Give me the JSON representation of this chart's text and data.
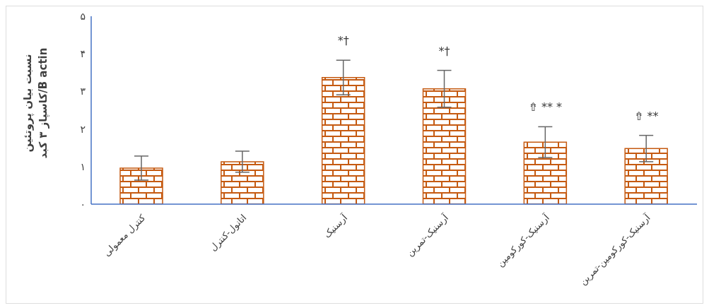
{
  "chart_data": {
    "type": "bar",
    "ylabel": "نسبت بیان پروتئین\nکاسپاز ۳ کبد/B actin",
    "categories": [
      "کنترل معمولی",
      "اتانول-کنترل",
      "آرسنیک",
      "آرسنیک-تمرین",
      "آرسنیک-کورکومین",
      "آرسنیک-کورکومین-تمرین"
    ],
    "values": [
      0.96,
      1.13,
      3.37,
      3.07,
      1.65,
      1.48
    ],
    "errors": [
      0.32,
      0.28,
      0.46,
      0.49,
      0.41,
      0.35
    ],
    "color": "#c55a11",
    "ylim": [
      0,
      5
    ],
    "yticks": [
      {
        "value": 0,
        "label": "۰"
      },
      {
        "value": 1,
        "label": "۱"
      },
      {
        "value": 2,
        "label": "۲"
      },
      {
        "value": 3,
        "label": "۳"
      },
      {
        "value": 4,
        "label": "۴"
      },
      {
        "value": 5,
        "label": "۵"
      }
    ],
    "grid": false,
    "value_labels": [
      null,
      null,
      "*†",
      "*†",
      "⇮ ** *",
      "⇮ **"
    ]
  }
}
